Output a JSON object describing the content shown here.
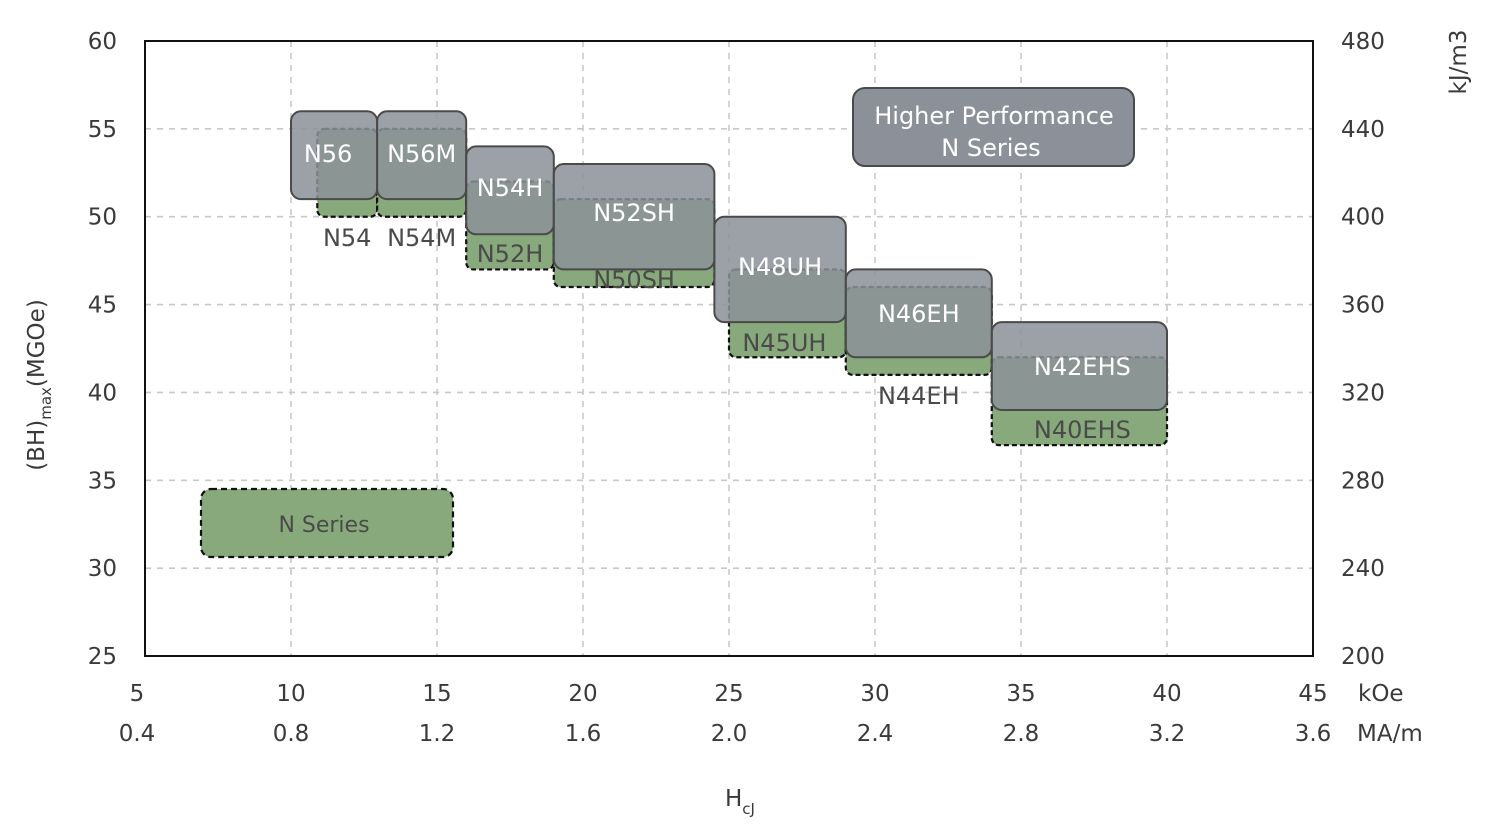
{
  "chart_data": {
    "type": "range-box",
    "title": "",
    "xlabel": "H",
    "xlabel_sub": "cJ",
    "ylabel": "(BH)",
    "ylabel_sub": "max",
    "ylabel_unit": "(MGOe)",
    "y2label": "kJ/m3",
    "x_unit_primary": "kOe",
    "x_unit_secondary": "MA/m",
    "xlim": [
      5,
      45
    ],
    "ylim": [
      25,
      60
    ],
    "grid": true,
    "x_ticks": [
      5,
      10,
      15,
      20,
      25,
      30,
      35,
      40,
      45
    ],
    "x_ticks_secondary": [
      "0.4",
      "0.8",
      "1.2",
      "1.6",
      "2.0",
      "2.4",
      "2.8",
      "3.2",
      "3.6"
    ],
    "y_ticks": [
      25,
      30,
      35,
      40,
      45,
      50,
      55,
      60
    ],
    "y2_ticks": [
      "200",
      "240",
      "280",
      "320",
      "360",
      "400",
      "440",
      "480"
    ],
    "colors": {
      "n_series": "#88a97b",
      "higher": "#8c9199",
      "frame": "#111111",
      "grid": "#c8c8c8"
    },
    "legend": [
      {
        "series": "higher",
        "lines": [
          "Higher Performance",
          "N Series"
        ]
      },
      {
        "series": "n_series",
        "lines": [
          "N Series"
        ]
      }
    ],
    "series": [
      {
        "name": "N Series",
        "key": "n_series",
        "grades": [
          {
            "label": "N54",
            "hcj": [
              10.9,
              12.95
            ],
            "bh": [
              50,
              55
            ]
          },
          {
            "label": "N54M",
            "hcj": [
              12.95,
              16
            ],
            "bh": [
              50,
              55
            ]
          },
          {
            "label": "N52H",
            "hcj": [
              16,
              19
            ],
            "bh": [
              47,
              52
            ]
          },
          {
            "label": "N50SH",
            "hcj": [
              19,
              24.5
            ],
            "bh": [
              46,
              51
            ]
          },
          {
            "label": "N45UH",
            "hcj": [
              25,
              29
            ],
            "bh": [
              42,
              47
            ]
          },
          {
            "label": "N44EH",
            "hcj": [
              29,
              34
            ],
            "bh": [
              41,
              46
            ]
          },
          {
            "label": "N40EHS",
            "hcj": [
              34,
              40
            ],
            "bh": [
              37,
              42
            ]
          }
        ]
      },
      {
        "name": "Higher Performance N Series",
        "key": "higher",
        "grades": [
          {
            "label": "N56",
            "hcj": [
              10,
              12.95
            ],
            "bh": [
              51,
              56
            ]
          },
          {
            "label": "N56M",
            "hcj": [
              12.95,
              16
            ],
            "bh": [
              51,
              56
            ]
          },
          {
            "label": "N54H",
            "hcj": [
              16,
              19
            ],
            "bh": [
              49,
              54
            ]
          },
          {
            "label": "N52SH",
            "hcj": [
              19,
              24.5
            ],
            "bh": [
              47,
              53
            ]
          },
          {
            "label": "N48UH",
            "hcj": [
              24.5,
              29
            ],
            "bh": [
              44,
              50
            ]
          },
          {
            "label": "N46EH",
            "hcj": [
              29,
              34
            ],
            "bh": [
              42,
              47
            ]
          },
          {
            "label": "N42EHS",
            "hcj": [
              34,
              40
            ],
            "bh": [
              39,
              44
            ]
          }
        ]
      }
    ]
  }
}
